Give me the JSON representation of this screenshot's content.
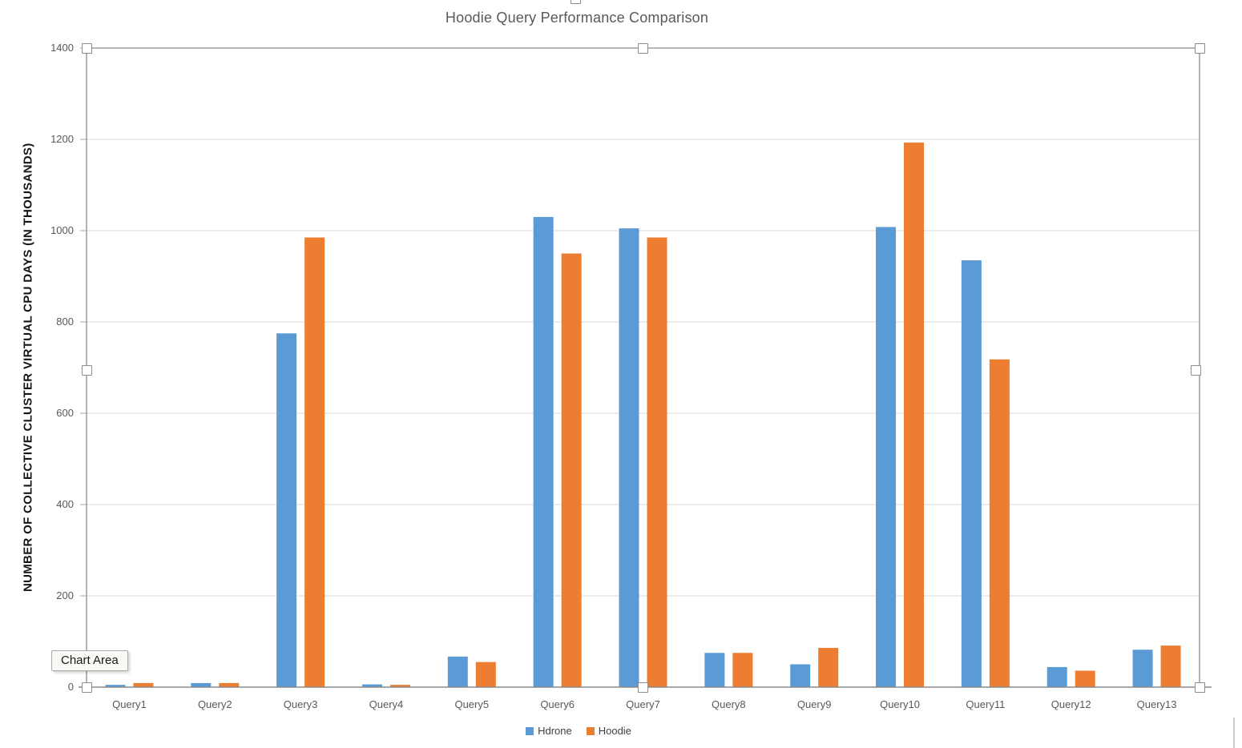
{
  "tooltip": {
    "label": "Chart Area"
  },
  "colors": {
    "series_blue": "#5B9BD5",
    "series_orange": "#ED7D31",
    "gridline": "#D9D9D9",
    "plot_frame": "#8C8C8C",
    "axis_text": "#595959",
    "title_text": "#595959"
  },
  "chart_data": {
    "type": "bar",
    "title": "Hoodie Query Performance Comparison",
    "xlabel": "",
    "ylabel": "NUMBER OF COLLECTIVE CLUSTER VIRTUAL CPU DAYS (IN THOUSANDS)",
    "categories": [
      "Query1",
      "Query2",
      "Query3",
      "Query4",
      "Query5",
      "Query6",
      "Query7",
      "Query8",
      "Query9",
      "Query10",
      "Query11",
      "Query12",
      "Query13"
    ],
    "series": [
      {
        "name": "Hdrone",
        "color": "#5B9BD5",
        "values": [
          5,
          9,
          775,
          6,
          67,
          1030,
          1005,
          75,
          50,
          1008,
          935,
          44,
          82
        ]
      },
      {
        "name": "Hoodie",
        "color": "#ED7D31",
        "values": [
          9,
          9,
          985,
          5,
          55,
          950,
          985,
          75,
          86,
          1193,
          718,
          36,
          91
        ]
      }
    ],
    "ylim": [
      0,
      1400
    ],
    "yticks": [
      0,
      200,
      400,
      600,
      800,
      1000,
      1200,
      1400
    ],
    "grid": true,
    "legend_position": "bottom"
  }
}
